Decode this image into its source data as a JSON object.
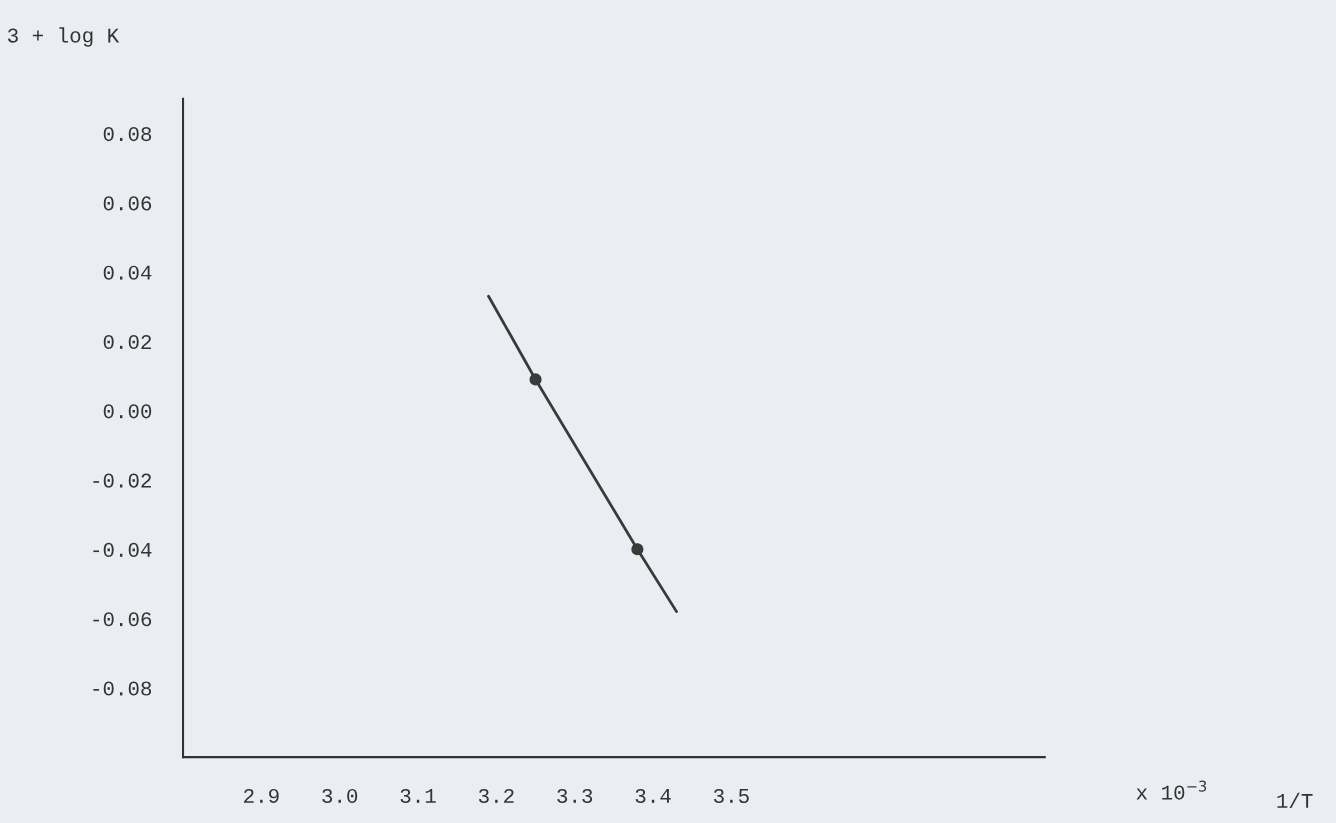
{
  "chart_data": {
    "type": "line",
    "ylabel": "3 + log K",
    "annotations": [
      "x 10$^{−3}$",
      "1/T"
    ],
    "series": [
      {
        "color": "#3a3a3a",
        "x": [
          3.19,
          3.25,
          3.38,
          3.43
        ],
        "values": [
          0.033,
          0.009,
          -0.04,
          -0.058
        ],
        "marker": "none"
      },
      {
        "type": "scatter",
        "color": "#3a3a3a",
        "x": [
          3.25,
          3.38
        ],
        "values": [
          0.009,
          -0.04
        ],
        "marker": "circle"
      }
    ],
    "xlim": [
      2.8,
      3.9
    ],
    "xticks": [
      2.9,
      {
        "value": 3.0,
        "label": "3.0"
      },
      3.1,
      3.2,
      3.3,
      3.4,
      3.5
    ],
    "ylim": [
      -0.1,
      0.09
    ],
    "yticks": [
      {
        "value": 0.08,
        "label": "0.08"
      },
      {
        "value": 0.06,
        "label": "0.06"
      },
      {
        "value": 0.04,
        "label": "0.04"
      },
      {
        "value": 0.02,
        "label": "0.02"
      },
      {
        "value": 0.0,
        "label": "0.00"
      },
      {
        "value": -0.02,
        "label": "-0.02"
      },
      {
        "value": -0.04,
        "label": "-0.04"
      },
      {
        "value": -0.06,
        "label": "-0.06"
      },
      {
        "value": -0.08,
        "label": "-0.08"
      }
    ],
    "grid": false,
    "legend": false
  }
}
